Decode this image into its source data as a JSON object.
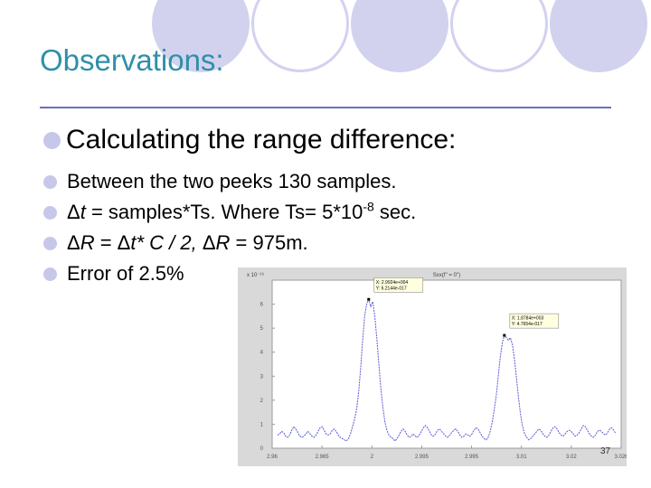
{
  "slide": {
    "title": "Observations:",
    "page_number": "37"
  },
  "bullets": {
    "main": "Calculating the range difference:",
    "line1": "Between the two peeks 130 samples.",
    "line2_a": "Δ",
    "line2_b": "t",
    "line2_c": " = samples*Ts. Where Ts= 5*10",
    "line2_sup": "-8",
    "line2_d": " sec.",
    "line3_a": "Δ",
    "line3_b": "R",
    "line3_c": " = Δ",
    "line3_d": "t* C / 2,",
    "line3_e": " Δ",
    "line3_f": "R",
    "line3_g": " = 975m.",
    "line4": "Error of 2.5%"
  },
  "colors": {
    "title": "#2f8fa8",
    "circle": "#d2d2ef",
    "bullet_dot": "#c7c7ea",
    "trace": "#5a5ad6"
  },
  "chart_data": {
    "type": "line",
    "title": "Sxx(f'' = 0'')",
    "y_exponent": "x 10⁻¹⁶",
    "yticks": [
      "6",
      "5",
      "4",
      "3",
      "2",
      "1",
      "0"
    ],
    "xticks": [
      "2.96",
      "2.965",
      "2",
      "2.995",
      "2.995",
      "3.01",
      "3.02",
      "3.026"
    ],
    "datatips": [
      {
        "line1": "X: 2.9924e+004",
        "line2": "Y: 6.2144e-017"
      },
      {
        "line1": "X: 1.8784e+003",
        "line2": "Y: 4.7654e-017"
      }
    ],
    "series": [
      {
        "values": [
          0.55,
          0.6,
          0.7,
          0.65,
          0.5,
          0.45,
          0.55,
          0.75,
          0.9,
          0.8,
          0.65,
          0.5,
          0.45,
          0.5,
          0.6,
          0.7,
          0.6,
          0.5,
          0.45,
          0.55,
          0.7,
          0.85,
          0.9,
          0.75,
          0.6,
          0.55,
          0.6,
          0.75,
          0.8,
          0.7,
          0.55,
          0.45,
          0.4,
          0.35,
          0.3,
          0.4,
          0.6,
          0.9,
          1.2,
          1.6,
          2.3,
          3.3,
          4.5,
          5.5,
          6.0,
          6.2,
          5.9,
          6.1,
          5.5,
          4.6,
          3.5,
          2.5,
          1.7,
          1.1,
          0.75,
          0.55,
          0.45,
          0.4,
          0.3,
          0.4,
          0.55,
          0.7,
          0.8,
          0.7,
          0.55,
          0.45,
          0.5,
          0.6,
          0.5,
          0.45,
          0.55,
          0.7,
          0.85,
          0.95,
          0.85,
          0.7,
          0.55,
          0.5,
          0.6,
          0.75,
          0.8,
          0.7,
          0.6,
          0.5,
          0.45,
          0.55,
          0.65,
          0.75,
          0.8,
          0.7,
          0.55,
          0.45,
          0.5,
          0.6,
          0.55,
          0.5,
          0.6,
          0.75,
          0.85,
          0.8,
          0.65,
          0.5,
          0.4,
          0.35,
          0.45,
          0.7,
          1.1,
          1.6,
          2.2,
          3.0,
          3.8,
          4.4,
          4.7,
          4.6,
          4.5,
          4.6,
          4.3,
          3.7,
          2.9,
          2.1,
          1.4,
          0.9,
          0.6,
          0.45,
          0.35,
          0.4,
          0.5,
          0.6,
          0.7,
          0.8,
          0.75,
          0.6,
          0.5,
          0.45,
          0.55,
          0.7,
          0.85,
          0.9,
          0.8,
          0.65,
          0.55,
          0.5,
          0.6,
          0.7,
          0.75,
          0.7,
          0.6,
          0.5,
          0.55,
          0.65,
          0.8,
          0.95,
          0.9,
          0.75,
          0.6,
          0.5,
          0.45,
          0.55,
          0.7,
          0.75,
          0.7,
          0.6,
          0.55,
          0.65,
          0.8,
          0.85,
          0.75,
          0.6
        ]
      }
    ]
  }
}
